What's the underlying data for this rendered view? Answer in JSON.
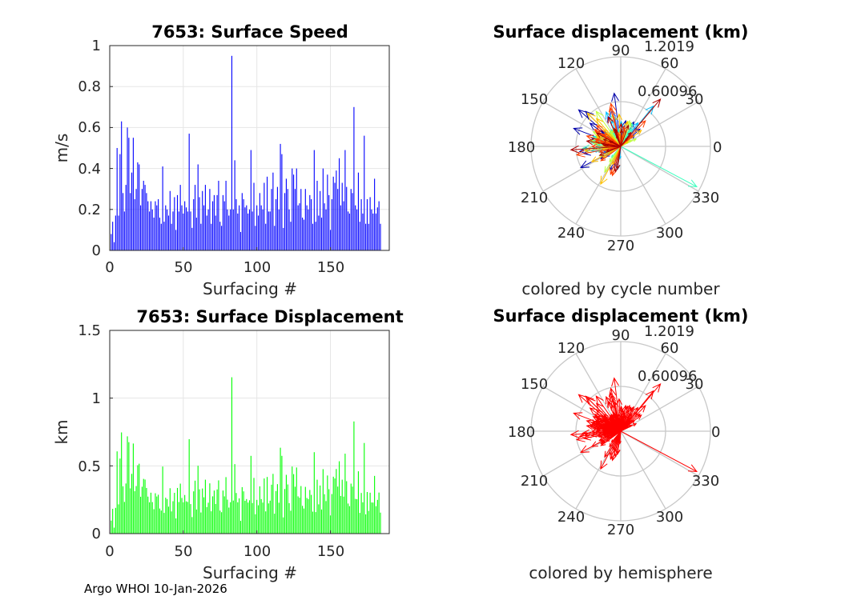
{
  "footer": "Argo WHOI 10-Jan-2026",
  "chart_data": [
    {
      "type": "bar",
      "title": "7653: Surface Speed",
      "xlabel": "Surfacing #",
      "ylabel": "m/s",
      "xlim": [
        0,
        190
      ],
      "ylim": [
        0,
        1
      ],
      "xticks": [
        "0",
        "50",
        "100",
        "150"
      ],
      "yticks": [
        "0",
        "0.2",
        "0.4",
        "0.6",
        "0.8",
        "1"
      ],
      "grid": true,
      "color": "#0000ff",
      "values": [
        0.08,
        0.14,
        0.04,
        0.17,
        0.5,
        0.17,
        0.47,
        0.63,
        0.28,
        0.19,
        0.32,
        0.6,
        0.55,
        0.28,
        0.38,
        0.55,
        0.25,
        0.3,
        0.43,
        0.42,
        0.22,
        0.3,
        0.34,
        0.32,
        0.28,
        0.24,
        0.19,
        0.24,
        0.2,
        0.16,
        0.24,
        0.22,
        0.25,
        0.16,
        0.13,
        0.41,
        0.14,
        0.22,
        0.2,
        0.17,
        0.29,
        0.13,
        0.19,
        0.26,
        0.1,
        0.27,
        0.19,
        0.32,
        0.22,
        0.18,
        0.24,
        0.21,
        0.19,
        0.57,
        0.19,
        0.11,
        0.25,
        0.32,
        0.16,
        0.42,
        0.26,
        0.13,
        0.29,
        0.22,
        0.32,
        0.17,
        0.2,
        0.3,
        0.13,
        0.24,
        0.27,
        0.17,
        0.27,
        0.34,
        0.14,
        0.12,
        0.27,
        0.24,
        0.34,
        0.2,
        0.17,
        0.2,
        0.95,
        0.2,
        0.44,
        0.25,
        0.18,
        0.22,
        0.09,
        0.28,
        0.25,
        0.21,
        0.22,
        0.18,
        0.2,
        0.49,
        0.19,
        0.33,
        0.12,
        0.22,
        0.17,
        0.28,
        0.22,
        0.2,
        0.33,
        0.13,
        0.36,
        0.19,
        0.19,
        0.3,
        0.38,
        0.12,
        0.25,
        0.31,
        0.2,
        0.52,
        0.47,
        0.11,
        0.28,
        0.35,
        0.3,
        0.2,
        0.14,
        0.4,
        0.37,
        0.3,
        0.4,
        0.22,
        0.23,
        0.3,
        0.16,
        0.15,
        0.3,
        0.22,
        0.2,
        0.27,
        0.25,
        0.13,
        0.49,
        0.14,
        0.34,
        0.17,
        0.29,
        0.16,
        0.4,
        0.23,
        0.2,
        0.37,
        0.27,
        0.1,
        0.25,
        0.36,
        0.33,
        0.39,
        0.3,
        0.45,
        0.22,
        0.33,
        0.24,
        0.49,
        0.31,
        0.19,
        0.18,
        0.3,
        0.28,
        0.7,
        0.22,
        0.2,
        0.38,
        0.14,
        0.25,
        0.18,
        0.56,
        0.13,
        0.25,
        0.13,
        0.26,
        0.2,
        0.18,
        0.35,
        0.18,
        0.21,
        0.24,
        0.13
      ]
    },
    {
      "type": "polar",
      "title": "Surface displacement (km)",
      "subtitle": "colored by cycle number",
      "rmax": 1.2019,
      "rlabels": [
        "0.60096",
        "1.2019"
      ],
      "angle_labels": [
        "0",
        "30",
        "60",
        "90",
        "120",
        "150",
        "180",
        "210",
        "240",
        "270",
        "300",
        "330"
      ],
      "palette": [
        "#0000aa",
        "#0060ff",
        "#00c0ff",
        "#40ffc0",
        "#c0ff40",
        "#ffc000",
        "#ff4000",
        "#aa0000"
      ]
    },
    {
      "type": "bar",
      "title": "7653: Surface Displacement",
      "xlabel": "Surfacing #",
      "ylabel": "km",
      "xlim": [
        0,
        190
      ],
      "ylim": [
        0,
        1.5
      ],
      "xticks": [
        "0",
        "50",
        "100",
        "150"
      ],
      "yticks": [
        "0",
        "0.5",
        "1",
        "1.5"
      ],
      "grid": true,
      "color": "#00ff00"
    },
    {
      "type": "polar",
      "title": "Surface displacement (km)",
      "subtitle": "colored by hemisphere",
      "rmax": 1.2019,
      "rlabels": [
        "0.60096",
        "1.2019"
      ],
      "angle_labels": [
        "0",
        "30",
        "60",
        "90",
        "120",
        "150",
        "180",
        "210",
        "240",
        "270",
        "300",
        "330"
      ],
      "color": "#ff0000"
    }
  ]
}
